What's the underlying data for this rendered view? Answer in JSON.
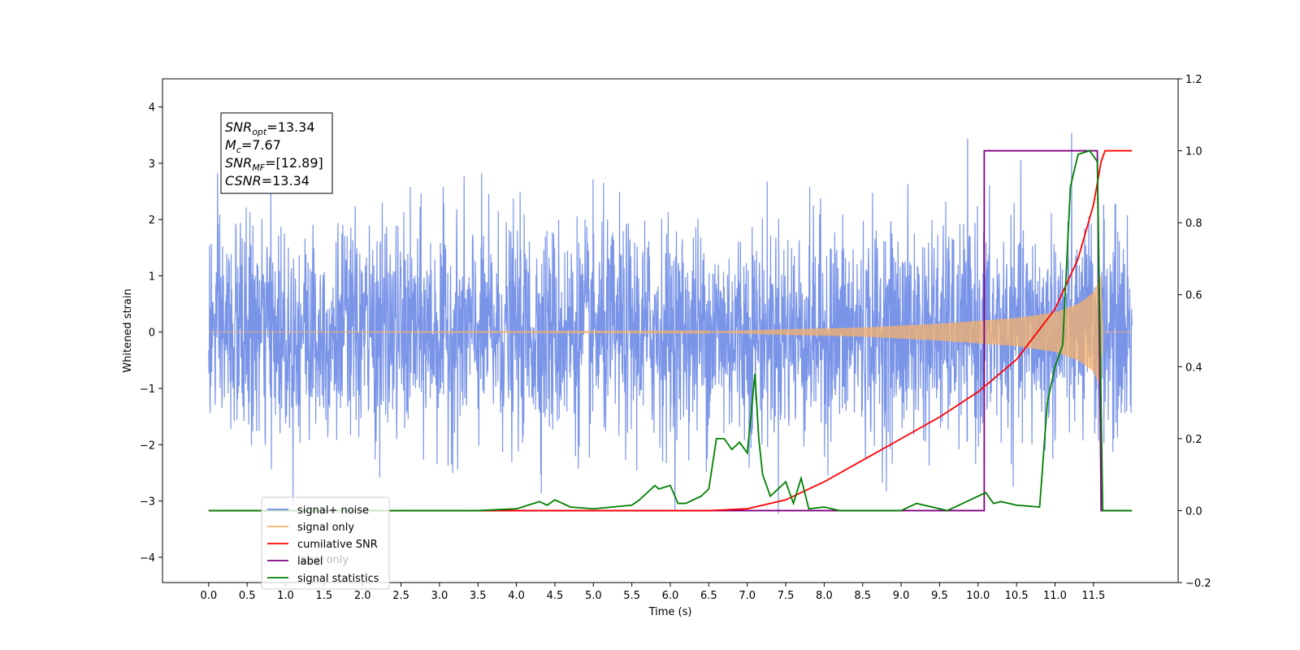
{
  "chart_data": {
    "type": "line",
    "xlabel": "Time (s)",
    "ylabel": "Whitened strain",
    "xlim": [
      -0.6,
      12.6
    ],
    "ylim": [
      -4.45,
      4.5
    ],
    "y2lim": [
      -0.2,
      1.2
    ],
    "x_ticks": [
      0.0,
      0.5,
      1.0,
      1.5,
      2.0,
      2.5,
      3.0,
      3.5,
      4.0,
      4.5,
      5.0,
      5.5,
      6.0,
      6.5,
      7.0,
      7.5,
      8.0,
      8.5,
      9.0,
      9.5,
      10.0,
      10.5,
      11.0,
      11.5
    ],
    "x_tick_labels": [
      "0.0",
      "0.5",
      "1.0",
      "1.5",
      "2.0",
      "2.5",
      "3.0",
      "3.5",
      "4.0",
      "4.5",
      "5.0",
      "5.5",
      "6.0",
      "6.5",
      "7.0",
      "7.5",
      "8.0",
      "8.5",
      "9.0",
      "9.5",
      "10.0",
      "10.5",
      "11.0",
      "11.5"
    ],
    "y_ticks": [
      4,
      3,
      2,
      1,
      0,
      -1,
      -2,
      -3,
      -4
    ],
    "y_tick_labels": [
      "4",
      "3",
      "2",
      "1",
      "0",
      "−1",
      "−2",
      "−3",
      "−4"
    ],
    "y2_ticks": [
      1.2,
      1.0,
      0.8,
      0.6,
      0.4,
      0.2,
      0.0,
      -0.2
    ],
    "y2_tick_labels": [
      "1.2",
      "1.0",
      "0.8",
      "0.6",
      "0.4",
      "0.2",
      "0.0",
      "−0.2"
    ],
    "grid": false,
    "legend_position": "lower-left",
    "colors": {
      "signal_noise": "#6b8ae6",
      "signal_only": "#f5b26b",
      "cumulative_snr": "#ff0000",
      "label": "#800080",
      "signal_statistics": "#008000"
    },
    "series": [
      {
        "name": "signal+ noise",
        "axis": "left",
        "x_range": [
          0.0,
          12.0
        ],
        "amplitude_envelope": 2.0,
        "note_style": "noisy"
      },
      {
        "name": "signal only",
        "axis": "left",
        "x": [
          0.0,
          6.5,
          7.5,
          8.5,
          9.5,
          10.0,
          10.5,
          11.0,
          11.3,
          11.5,
          11.6,
          11.62,
          12.0
        ],
        "y_envelope": [
          0.0,
          0.01,
          0.05,
          0.08,
          0.15,
          0.2,
          0.25,
          0.35,
          0.5,
          0.7,
          1.0,
          0.0,
          0.0
        ]
      },
      {
        "name": "cumilative SNR",
        "axis": "right",
        "x": [
          0.0,
          6.5,
          7.0,
          7.5,
          8.0,
          8.5,
          9.0,
          9.5,
          10.0,
          10.5,
          11.0,
          11.3,
          11.5,
          11.6,
          11.65,
          12.0
        ],
        "y": [
          0.0,
          0.0,
          0.005,
          0.03,
          0.08,
          0.14,
          0.2,
          0.26,
          0.33,
          0.42,
          0.56,
          0.7,
          0.85,
          0.97,
          1.0,
          1.0
        ]
      },
      {
        "name": "label",
        "axis": "right",
        "x": [
          0.0,
          10.08,
          10.08,
          11.55,
          11.6,
          12.0
        ],
        "y": [
          0.0,
          0.0,
          1.0,
          1.0,
          0.0,
          0.0
        ]
      },
      {
        "name": "signal statistics",
        "axis": "right",
        "x": [
          0.0,
          3.5,
          4.0,
          4.3,
          4.4,
          4.5,
          4.7,
          5.0,
          5.5,
          5.6,
          5.8,
          5.85,
          6.0,
          6.1,
          6.2,
          6.4,
          6.5,
          6.6,
          6.7,
          6.8,
          6.9,
          7.0,
          7.1,
          7.15,
          7.2,
          7.3,
          7.5,
          7.6,
          7.7,
          7.8,
          8.0,
          8.2,
          9.0,
          9.2,
          9.6,
          10.1,
          10.2,
          10.3,
          10.5,
          10.8,
          10.9,
          11.0,
          11.1,
          11.2,
          11.3,
          11.45,
          11.55,
          11.62,
          12.0
        ],
        "y": [
          0.0,
          0.0,
          0.005,
          0.025,
          0.015,
          0.03,
          0.01,
          0.005,
          0.015,
          0.03,
          0.07,
          0.06,
          0.07,
          0.02,
          0.02,
          0.04,
          0.06,
          0.2,
          0.2,
          0.17,
          0.19,
          0.16,
          0.38,
          0.2,
          0.1,
          0.04,
          0.08,
          0.02,
          0.09,
          0.005,
          0.01,
          0.0,
          0.0,
          0.02,
          0.0,
          0.05,
          0.02,
          0.025,
          0.015,
          0.01,
          0.3,
          0.4,
          0.46,
          0.9,
          0.99,
          1.0,
          0.97,
          0.0,
          0.0
        ]
      }
    ],
    "legend": [
      {
        "label": "signal+ noise",
        "color": "#6b8ae6"
      },
      {
        "label": "signal only",
        "color": "#f5b26b"
      },
      {
        "label": "cumilative SNR",
        "color": "#ff0000"
      },
      {
        "label": "label",
        "color": "#800080"
      },
      {
        "label": "signal statistics",
        "color": "#008000"
      }
    ],
    "occluded_text": "label only",
    "stats_box": [
      {
        "name": "SNR",
        "sub": "opt",
        "value": "=13.34"
      },
      {
        "name": "M",
        "sub": "c",
        "value": "=7.67"
      },
      {
        "name": "SNR",
        "sub": "MF",
        "value": "=[12.89]"
      },
      {
        "name": "CSNR",
        "sub": "",
        "value": "=13.34"
      }
    ]
  }
}
